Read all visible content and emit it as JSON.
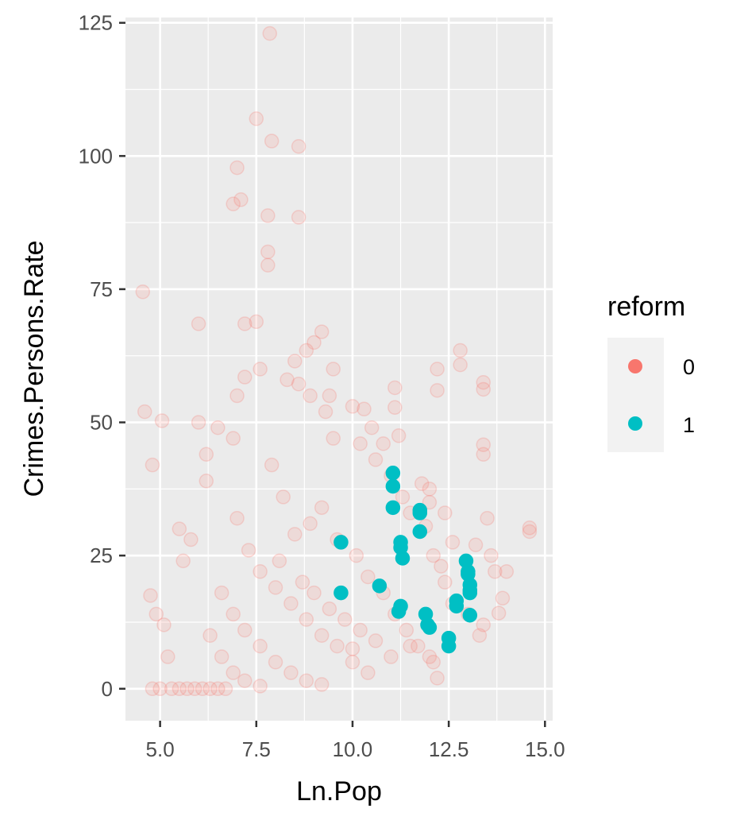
{
  "chart_data": {
    "type": "scatter",
    "xlabel": "Ln.Pop",
    "ylabel": "Crimes.Persons.Rate",
    "xlim": [
      4.1,
      15.2
    ],
    "ylim": [
      -6,
      126
    ],
    "x_ticks": [
      5.0,
      7.5,
      10.0,
      12.5,
      15.0
    ],
    "x_tick_labels": [
      "5.0",
      "7.5",
      "10.0",
      "12.5",
      "15.0"
    ],
    "y_ticks": [
      0,
      25,
      50,
      75,
      100,
      125
    ],
    "y_tick_labels": [
      "0",
      "25",
      "50",
      "75",
      "100",
      "125"
    ],
    "grid": true,
    "background": "#ebebeb",
    "legend": {
      "title": "reform",
      "position": "right",
      "entries": [
        {
          "label": "0",
          "color": "#F8766D"
        },
        {
          "label": "1",
          "color": "#00BFC4"
        }
      ]
    },
    "series": [
      {
        "name": "0",
        "color": "#F8766D",
        "opacity": 0.15,
        "points": [
          [
            4.55,
            74.5
          ],
          [
            4.6,
            52
          ],
          [
            4.8,
            42
          ],
          [
            5.05,
            50.3
          ],
          [
            4.75,
            17.5
          ],
          [
            4.9,
            14
          ],
          [
            5.1,
            12
          ],
          [
            5.2,
            6
          ],
          [
            4.8,
            0
          ],
          [
            5.0,
            0
          ],
          [
            5.3,
            0
          ],
          [
            5.5,
            0
          ],
          [
            5.7,
            0
          ],
          [
            5.9,
            0
          ],
          [
            6.1,
            0
          ],
          [
            6.3,
            0
          ],
          [
            6.5,
            0
          ],
          [
            6.7,
            0
          ],
          [
            6.0,
            68.5
          ],
          [
            6.2,
            44
          ],
          [
            6.0,
            50
          ],
          [
            6.5,
            49
          ],
          [
            5.5,
            30
          ],
          [
            5.8,
            28
          ],
          [
            6.2,
            39
          ],
          [
            5.6,
            24
          ],
          [
            6.9,
            91
          ],
          [
            7.0,
            97.8
          ],
          [
            7.1,
            91.8
          ],
          [
            7.2,
            68.5
          ],
          [
            7.5,
            68.9
          ],
          [
            7.5,
            107
          ],
          [
            7.8,
            88.8
          ],
          [
            7.8,
            82
          ],
          [
            7.85,
            123
          ],
          [
            7.9,
            102.8
          ],
          [
            7.8,
            79.5
          ],
          [
            8.6,
            101.8
          ],
          [
            8.6,
            88.5
          ],
          [
            8.5,
            61.5
          ],
          [
            9.2,
            67
          ],
          [
            9.0,
            65
          ],
          [
            8.8,
            63.5
          ],
          [
            9.5,
            60
          ],
          [
            9.4,
            55
          ],
          [
            10.0,
            53
          ],
          [
            10.3,
            52.5
          ],
          [
            10.5,
            49
          ],
          [
            10.8,
            46
          ],
          [
            11.1,
            56.5
          ],
          [
            11.2,
            47.5
          ],
          [
            11.1,
            52.8
          ],
          [
            12.2,
            60
          ],
          [
            12.2,
            56
          ],
          [
            12.8,
            63.5
          ],
          [
            12.8,
            60.8
          ],
          [
            13.4,
            57.5
          ],
          [
            13.4,
            56.2
          ],
          [
            13.4,
            45.8
          ],
          [
            13.4,
            44
          ],
          [
            13.5,
            32
          ],
          [
            13.2,
            27
          ],
          [
            13.6,
            25
          ],
          [
            13.7,
            22
          ],
          [
            14.0,
            22
          ],
          [
            13.9,
            17
          ],
          [
            13.4,
            12
          ],
          [
            13.3,
            10
          ],
          [
            13.8,
            14.2
          ],
          [
            14.6,
            30.2
          ],
          [
            14.6,
            29.5
          ],
          [
            12.0,
            37.5
          ],
          [
            12.4,
            33
          ],
          [
            12.6,
            27.5
          ],
          [
            12.1,
            25
          ],
          [
            11.8,
            38.5
          ],
          [
            12.0,
            35
          ],
          [
            12.4,
            20
          ],
          [
            11.5,
            8
          ],
          [
            12.1,
            5
          ],
          [
            12.2,
            2
          ],
          [
            10.0,
            7.5
          ],
          [
            9.7,
            27.5
          ],
          [
            9.7,
            18
          ],
          [
            7.2,
            58.5
          ],
          [
            7.0,
            55
          ],
          [
            6.9,
            47
          ],
          [
            7.6,
            60
          ],
          [
            8.3,
            58
          ],
          [
            8.6,
            57.2
          ],
          [
            8.9,
            55
          ],
          [
            9.3,
            52
          ],
          [
            9.5,
            47
          ],
          [
            10.2,
            46
          ],
          [
            10.6,
            43
          ],
          [
            11.0,
            40
          ],
          [
            11.3,
            36
          ],
          [
            11.5,
            33
          ],
          [
            11.9,
            30.5
          ],
          [
            12.3,
            23
          ],
          [
            12.6,
            16
          ],
          [
            13.0,
            14
          ],
          [
            7.9,
            42
          ],
          [
            8.2,
            36
          ],
          [
            8.5,
            29
          ],
          [
            8.9,
            31
          ],
          [
            9.2,
            34
          ],
          [
            9.6,
            28
          ],
          [
            10.1,
            25
          ],
          [
            10.4,
            21
          ],
          [
            10.8,
            18
          ],
          [
            11.1,
            14
          ],
          [
            11.4,
            11
          ],
          [
            11.7,
            8
          ],
          [
            12.0,
            6
          ],
          [
            7.0,
            32
          ],
          [
            7.3,
            26
          ],
          [
            7.6,
            22
          ],
          [
            8.0,
            19
          ],
          [
            8.4,
            16
          ],
          [
            8.8,
            13
          ],
          [
            9.2,
            10
          ],
          [
            9.6,
            8
          ],
          [
            10.0,
            5
          ],
          [
            10.4,
            3
          ],
          [
            6.6,
            18
          ],
          [
            6.9,
            14
          ],
          [
            7.2,
            11
          ],
          [
            7.6,
            8
          ],
          [
            8.0,
            5
          ],
          [
            8.4,
            3
          ],
          [
            8.8,
            1.5
          ],
          [
            9.2,
            0.8
          ],
          [
            6.3,
            10
          ],
          [
            6.6,
            6
          ],
          [
            6.9,
            3
          ],
          [
            7.2,
            1.5
          ],
          [
            7.6,
            0.5
          ],
          [
            8.1,
            24
          ],
          [
            8.7,
            20
          ],
          [
            9.0,
            18
          ],
          [
            9.4,
            15
          ],
          [
            9.8,
            13
          ],
          [
            10.2,
            11
          ],
          [
            10.6,
            9
          ],
          [
            11.0,
            6
          ]
        ]
      },
      {
        "name": "1",
        "color": "#00BFC4",
        "opacity": 1.0,
        "points": [
          [
            11.05,
            40.5
          ],
          [
            11.05,
            38
          ],
          [
            11.05,
            34
          ],
          [
            11.75,
            33.5
          ],
          [
            11.75,
            33
          ],
          [
            11.75,
            29.5
          ],
          [
            11.25,
            27.5
          ],
          [
            11.25,
            26.5
          ],
          [
            11.3,
            24.5
          ],
          [
            10.7,
            19.3
          ],
          [
            9.7,
            27.5
          ],
          [
            9.7,
            18
          ],
          [
            11.25,
            15.5
          ],
          [
            11.2,
            14.5
          ],
          [
            11.9,
            14
          ],
          [
            11.95,
            12
          ],
          [
            12.0,
            11.5
          ],
          [
            12.5,
            9.5
          ],
          [
            12.5,
            8
          ],
          [
            12.7,
            16.5
          ],
          [
            12.7,
            15.5
          ],
          [
            12.95,
            24
          ],
          [
            13.0,
            22
          ],
          [
            13.0,
            21.5
          ],
          [
            13.05,
            19.5
          ],
          [
            13.05,
            18.5
          ],
          [
            13.05,
            18
          ],
          [
            13.05,
            13.8
          ]
        ]
      }
    ]
  }
}
